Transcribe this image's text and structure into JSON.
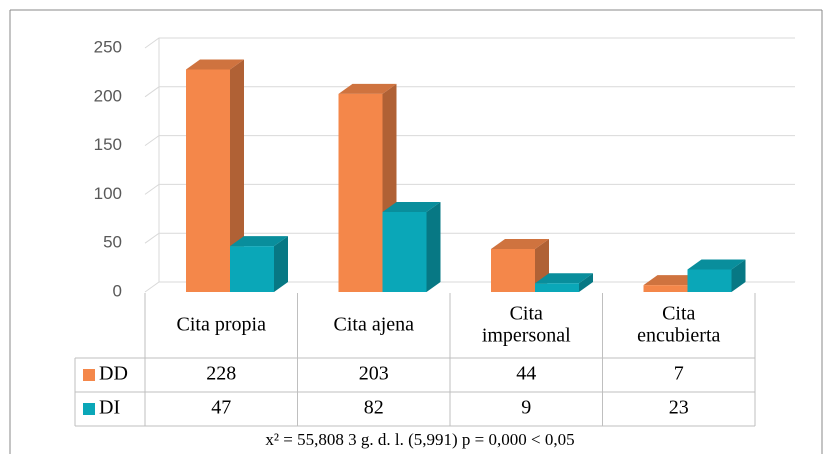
{
  "chart_data": {
    "type": "bar3d",
    "categories": [
      "Cita propia",
      "Cita ajena",
      "Cita\nimpersonal",
      "Cita\nencubierta"
    ],
    "series": [
      {
        "name": "DD",
        "color": "#f4874a",
        "values": [
          228,
          203,
          44,
          7
        ]
      },
      {
        "name": "DI",
        "color": "#0aa7b8",
        "values": [
          47,
          82,
          9,
          23
        ]
      }
    ],
    "ylim": [
      0,
      250
    ],
    "yticks": [
      0,
      50,
      100,
      150,
      200,
      250
    ],
    "grid": true,
    "footnote": "x² = 55,808   3 g. d. l. (5,991)    p = 0,000 < 0,05"
  }
}
